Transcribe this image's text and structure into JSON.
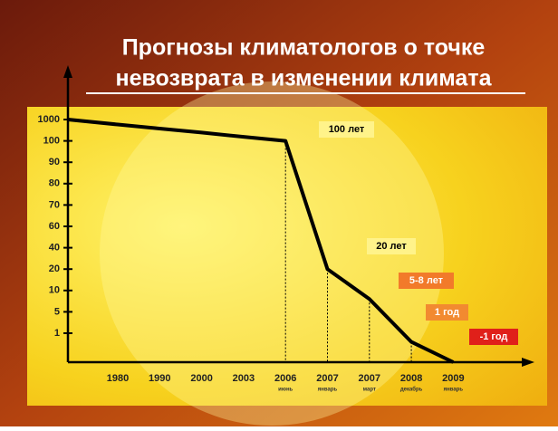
{
  "chart_data": {
    "type": "line",
    "title": [
      "Прогнозы климатологов о точке",
      "невозврата в изменении климата"
    ],
    "categories": [
      null,
      "1980",
      "1990",
      "2000",
      "2003",
      "2006",
      "2007",
      "2007",
      "2008",
      "2009"
    ],
    "category_sublabels": [
      null,
      null,
      null,
      null,
      null,
      "июнь",
      "январь",
      "март",
      "декабрь",
      "январь"
    ],
    "series": [
      {
        "color": "#000000",
        "values": [
          1000,
          790,
          620,
          450,
          270,
          100,
          20,
          8,
          0.7,
          0
        ]
      }
    ],
    "ylim": [
      0,
      1000
    ],
    "yticks": [
      1000,
      100,
      90,
      80,
      70,
      60,
      40,
      20,
      10,
      5,
      1
    ],
    "annotations": [
      {
        "text": "100 лет",
        "fill": "#fff38a",
        "color": "#000000"
      },
      {
        "text": "20 лет",
        "fill": "#fff38a",
        "color": "#000000"
      },
      {
        "text": "5-8 лет",
        "fill": "#f27a2a",
        "color": "#ffffff"
      },
      {
        "text": "1 год",
        "fill": "#f28a30",
        "color": "#ffffff"
      },
      {
        "text": "-1 год",
        "fill": "#e0201a",
        "color": "#ffffff"
      }
    ]
  }
}
